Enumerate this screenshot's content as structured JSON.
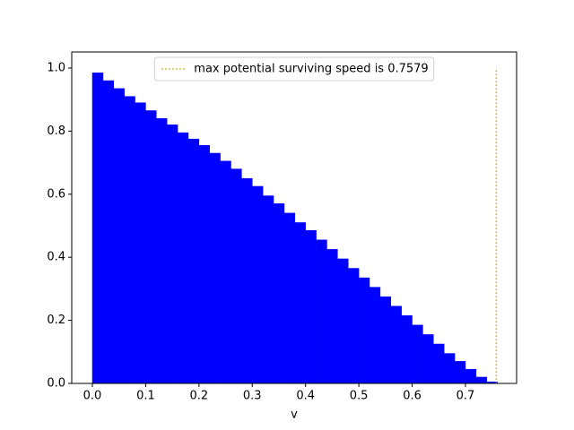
{
  "chart_data": {
    "type": "histogram",
    "xlabel": "v",
    "bins": [
      0,
      0.02,
      0.04,
      0.06,
      0.08,
      0.1,
      0.12,
      0.14,
      0.16,
      0.18,
      0.2,
      0.22,
      0.24,
      0.26,
      0.28,
      0.3,
      0.32,
      0.34,
      0.36,
      0.38,
      0.4,
      0.42,
      0.44,
      0.46,
      0.48,
      0.5,
      0.52,
      0.54,
      0.56,
      0.58,
      0.6,
      0.62,
      0.64,
      0.66,
      0.68,
      0.7,
      0.72,
      0.74,
      0.76
    ],
    "values": [
      0.985,
      0.96,
      0.935,
      0.91,
      0.89,
      0.865,
      0.84,
      0.82,
      0.795,
      0.775,
      0.755,
      0.73,
      0.705,
      0.68,
      0.65,
      0.625,
      0.595,
      0.57,
      0.54,
      0.51,
      0.485,
      0.455,
      0.425,
      0.395,
      0.365,
      0.335,
      0.305,
      0.275,
      0.245,
      0.215,
      0.185,
      0.155,
      0.125,
      0.095,
      0.07,
      0.045,
      0.02,
      0.005
    ],
    "color": "#0000ff",
    "vline": {
      "x": 0.7579,
      "ymin": 0,
      "ymax": 1,
      "color": "#ccaa00",
      "label": "max potential surviving speed is 0.7579"
    },
    "legend": "upper center",
    "xlim": [
      -0.0387,
      0.796
    ],
    "ylim": [
      0,
      1.051
    ],
    "xticks": [
      {
        "value": 0,
        "label": "0.0"
      },
      0.1,
      0.2,
      0.3,
      0.4,
      0.5,
      0.6,
      0.7
    ],
    "yticks": [
      {
        "value": 0,
        "label": "0.0"
      },
      0.2,
      0.4,
      0.6,
      0.8,
      {
        "value": 1,
        "label": "1.0"
      }
    ]
  }
}
